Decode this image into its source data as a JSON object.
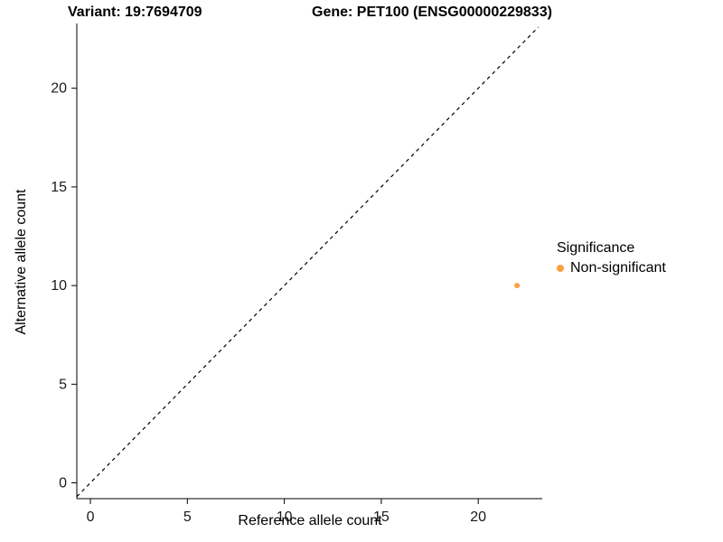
{
  "chart_data": {
    "type": "scatter",
    "title_left": "Variant: 19:7694709",
    "title_right": "Gene: PET100 (ENSG00000229833)",
    "xlabel": "Reference allele count",
    "ylabel": "Alternative allele count",
    "xlim": [
      -0.7,
      23.3
    ],
    "ylim": [
      -0.8,
      23.1
    ],
    "x_ticks": [
      0,
      5,
      10,
      15,
      20
    ],
    "y_ticks": [
      0,
      5,
      10,
      15,
      20
    ],
    "grid": false,
    "identity_line": {
      "style": "dashed",
      "color": "#000000",
      "note": "y = x reference line"
    },
    "series": [
      {
        "name": "Non-significant",
        "color": "#F9A03F",
        "points": [
          {
            "x": 22,
            "y": 10
          }
        ]
      }
    ],
    "legend": {
      "title": "Significance",
      "position": "right",
      "entries": [
        {
          "label": "Non-significant",
          "color": "#F9A03F"
        }
      ]
    }
  }
}
